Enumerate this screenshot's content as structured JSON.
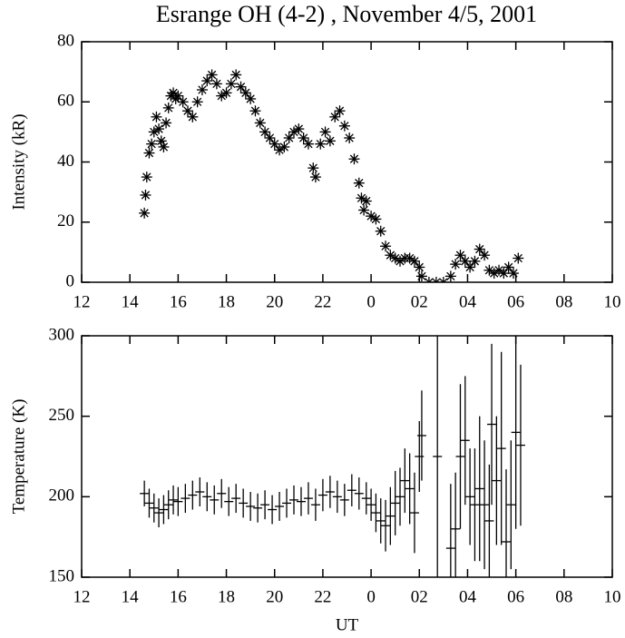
{
  "chart_data": [
    {
      "type": "scatter",
      "title": "Esrange OH (4-2) , November 4/5, 2001",
      "ylabel": "Intensity (kR)",
      "color": "#000000",
      "x": [
        14.6,
        14.65,
        14.7,
        14.8,
        14.9,
        15.0,
        15.1,
        15.2,
        15.3,
        15.4,
        15.5,
        15.6,
        15.7,
        15.8,
        15.9,
        16.0,
        16.2,
        16.4,
        16.6,
        16.8,
        17.0,
        17.2,
        17.4,
        17.6,
        17.8,
        18.0,
        18.2,
        18.4,
        18.6,
        18.8,
        19.0,
        19.2,
        19.4,
        19.6,
        19.8,
        20.0,
        20.2,
        20.4,
        20.6,
        20.8,
        21.0,
        21.2,
        21.4,
        21.6,
        21.7,
        21.9,
        22.1,
        22.3,
        22.5,
        22.7,
        22.9,
        23.1,
        23.3,
        23.5,
        23.6,
        23.7,
        23.8,
        24.0,
        24.2,
        24.4,
        24.6,
        24.8,
        25.0,
        25.2,
        25.4,
        25.6,
        25.8,
        26.0,
        26.1,
        26.4,
        26.7,
        27.0,
        27.3,
        27.5,
        27.7,
        27.9,
        28.1,
        28.3,
        28.5,
        28.7,
        28.9,
        29.1,
        29.3,
        29.5,
        29.7,
        29.9,
        30.1
      ],
      "values": [
        23,
        29,
        35,
        43,
        46,
        50,
        55,
        51,
        47,
        45,
        53,
        58,
        62,
        63,
        61,
        62,
        60,
        57,
        55,
        60,
        64,
        67,
        69,
        66,
        62,
        63,
        66,
        69,
        65,
        63,
        61,
        57,
        53,
        50,
        48,
        46,
        44,
        45,
        48,
        50,
        51,
        48,
        46,
        38,
        35,
        46,
        50,
        47,
        55,
        57,
        52,
        48,
        41,
        33,
        28,
        24,
        27,
        22,
        21,
        17,
        12,
        9,
        8,
        7,
        8,
        8,
        7,
        5,
        2,
        0,
        0,
        0,
        2,
        6,
        9,
        7,
        5,
        7,
        11,
        9,
        4,
        3,
        4,
        3,
        5,
        3,
        8
      ],
      "xlim": [
        12,
        34
      ],
      "xticks": [
        12,
        14,
        16,
        18,
        20,
        22,
        {
          "value": 24,
          "label": "0"
        },
        {
          "value": 26,
          "label": "02"
        },
        {
          "value": 28,
          "label": "04"
        },
        {
          "value": 30,
          "label": "06"
        },
        {
          "value": 32,
          "label": "08"
        },
        {
          "value": 34,
          "label": "10"
        }
      ],
      "ylim": [
        0,
        80
      ],
      "yticks": [
        0,
        20,
        40,
        60,
        80
      ]
    },
    {
      "type": "errorbar",
      "ylabel": "Temperature (K)",
      "xlabel": "UT",
      "color": "#000000",
      "x": [
        14.6,
        14.8,
        15.0,
        15.2,
        15.4,
        15.6,
        15.8,
        16.0,
        16.3,
        16.6,
        16.9,
        17.2,
        17.5,
        17.8,
        18.1,
        18.4,
        18.7,
        19.0,
        19.3,
        19.6,
        19.9,
        20.2,
        20.5,
        20.8,
        21.1,
        21.4,
        21.7,
        22.0,
        22.3,
        22.6,
        22.9,
        23.2,
        23.5,
        23.8,
        24.0,
        24.2,
        24.4,
        24.6,
        24.8,
        25.0,
        25.2,
        25.4,
        25.6,
        25.8,
        26.0,
        26.1,
        26.75,
        27.3,
        27.5,
        27.7,
        27.9,
        28.1,
        28.3,
        28.5,
        28.7,
        28.9,
        29.0,
        29.2,
        29.4,
        29.6,
        29.8,
        30.0,
        30.2
      ],
      "values": [
        202,
        196,
        193,
        190,
        192,
        195,
        198,
        197,
        199,
        201,
        203,
        200,
        198,
        202,
        197,
        199,
        196,
        194,
        193,
        195,
        192,
        194,
        196,
        198,
        197,
        199,
        195,
        201,
        203,
        200,
        198,
        204,
        202,
        199,
        195,
        190,
        185,
        182,
        188,
        196,
        200,
        210,
        205,
        190,
        225,
        238,
        225,
        168,
        180,
        225,
        235,
        200,
        195,
        205,
        195,
        185,
        245,
        210,
        230,
        172,
        195,
        240,
        232
      ],
      "errors": [
        8,
        9,
        9,
        9,
        9,
        9,
        9,
        9,
        9,
        9,
        9,
        9,
        9,
        9,
        9,
        9,
        9,
        9,
        9,
        9,
        9,
        9,
        9,
        9,
        9,
        10,
        10,
        10,
        10,
        10,
        10,
        10,
        10,
        10,
        10,
        12,
        14,
        16,
        18,
        20,
        18,
        20,
        22,
        25,
        22,
        28,
        80,
        40,
        35,
        45,
        40,
        30,
        35,
        45,
        40,
        35,
        50,
        40,
        60,
        45,
        40,
        60,
        50
      ],
      "xlim": [
        12,
        34
      ],
      "xticks": [
        12,
        14,
        16,
        18,
        20,
        22,
        {
          "value": 24,
          "label": "0"
        },
        {
          "value": 26,
          "label": "02"
        },
        {
          "value": 28,
          "label": "04"
        },
        {
          "value": 30,
          "label": "06"
        },
        {
          "value": 32,
          "label": "08"
        },
        {
          "value": 34,
          "label": "10"
        }
      ],
      "ylim": [
        150,
        300
      ],
      "yticks": [
        150,
        200,
        250,
        300
      ]
    }
  ]
}
